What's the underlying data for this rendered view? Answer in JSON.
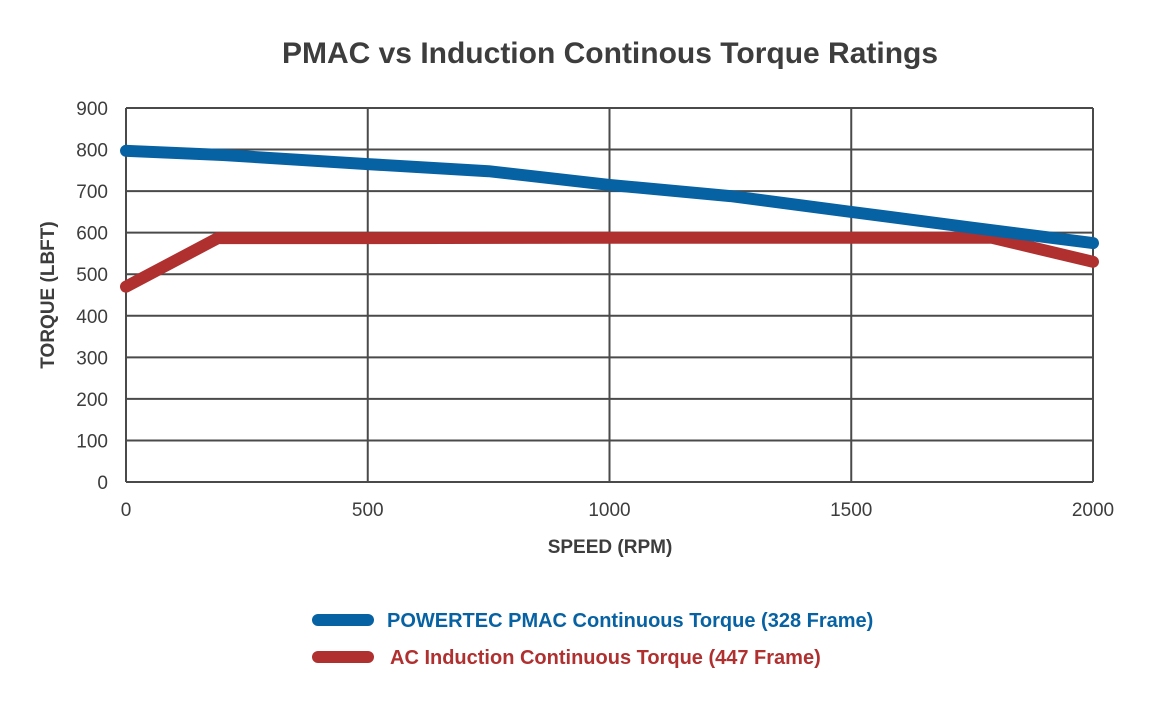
{
  "chart_data": {
    "type": "line",
    "title": "PMAC vs Induction Continous Torque Ratings",
    "xlabel": "SPEED (RPM)",
    "ylabel": "TORQUE (LBFT)",
    "xlim": [
      0,
      2000
    ],
    "ylim": [
      0,
      900
    ],
    "xticks": [
      0,
      500,
      1000,
      1500,
      2000
    ],
    "yticks": [
      0,
      100,
      200,
      300,
      400,
      500,
      600,
      700,
      800,
      900
    ],
    "grid": true,
    "legend_position": "bottom",
    "series": [
      {
        "name": "POWERTEC PMAC Continuous Torque (328 Frame)",
        "color": "#0762a3",
        "x": [
          0,
          200,
          500,
          750,
          1000,
          1250,
          1500,
          1750,
          2000
        ],
        "y": [
          797,
          787,
          765,
          748,
          715,
          688,
          650,
          612,
          575
        ]
      },
      {
        "name": "AC Induction Continuous Torque (447 Frame)",
        "color": "#b03030",
        "x": [
          0,
          190,
          500,
          1000,
          1500,
          1790,
          2000
        ],
        "y": [
          470,
          587,
          587,
          588,
          588,
          588,
          530
        ]
      }
    ]
  }
}
